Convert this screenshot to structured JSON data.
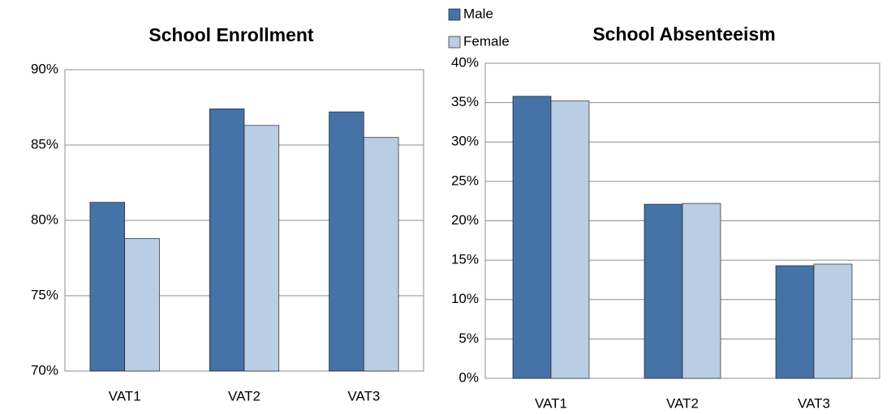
{
  "chart_data": [
    {
      "type": "bar",
      "title": "School Enrollment",
      "categories": [
        "VAT1",
        "VAT2",
        "VAT3"
      ],
      "series": [
        {
          "name": "Male",
          "color": "#4572a7",
          "values": [
            81.2,
            87.4,
            87.2
          ]
        },
        {
          "name": "Female",
          "color": "#b9cde5",
          "values": [
            78.8,
            86.3,
            85.5
          ]
        }
      ],
      "ylim": [
        70,
        90
      ],
      "yticks": [
        {
          "value": 70,
          "label": "70%"
        },
        {
          "value": 75,
          "label": "75%"
        },
        {
          "value": 80,
          "label": "80%"
        },
        {
          "value": 85,
          "label": "85%"
        },
        {
          "value": 90,
          "label": "90%"
        }
      ],
      "grid": true,
      "legend": "top"
    },
    {
      "type": "bar",
      "title": "School Absenteeism",
      "categories": [
        "VAT1",
        "VAT2",
        "VAT3"
      ],
      "series": [
        {
          "color": "#4572a7",
          "values": [
            35.8,
            22.1,
            14.3
          ]
        },
        {
          "color": "#b9cde5",
          "values": [
            35.2,
            22.2,
            14.5
          ]
        }
      ],
      "ylim": [
        0,
        40
      ],
      "yticks": [
        {
          "value": 0,
          "label": "0%"
        },
        {
          "value": 5,
          "label": "5%"
        },
        {
          "value": 10,
          "label": "10%"
        },
        {
          "value": 15,
          "label": "15%"
        },
        {
          "value": 20,
          "label": "20%"
        },
        {
          "value": 25,
          "label": "25%"
        },
        {
          "value": 30,
          "label": "30%"
        },
        {
          "value": 35,
          "label": "35%"
        },
        {
          "value": 40,
          "label": "40%"
        }
      ],
      "grid": true
    }
  ]
}
